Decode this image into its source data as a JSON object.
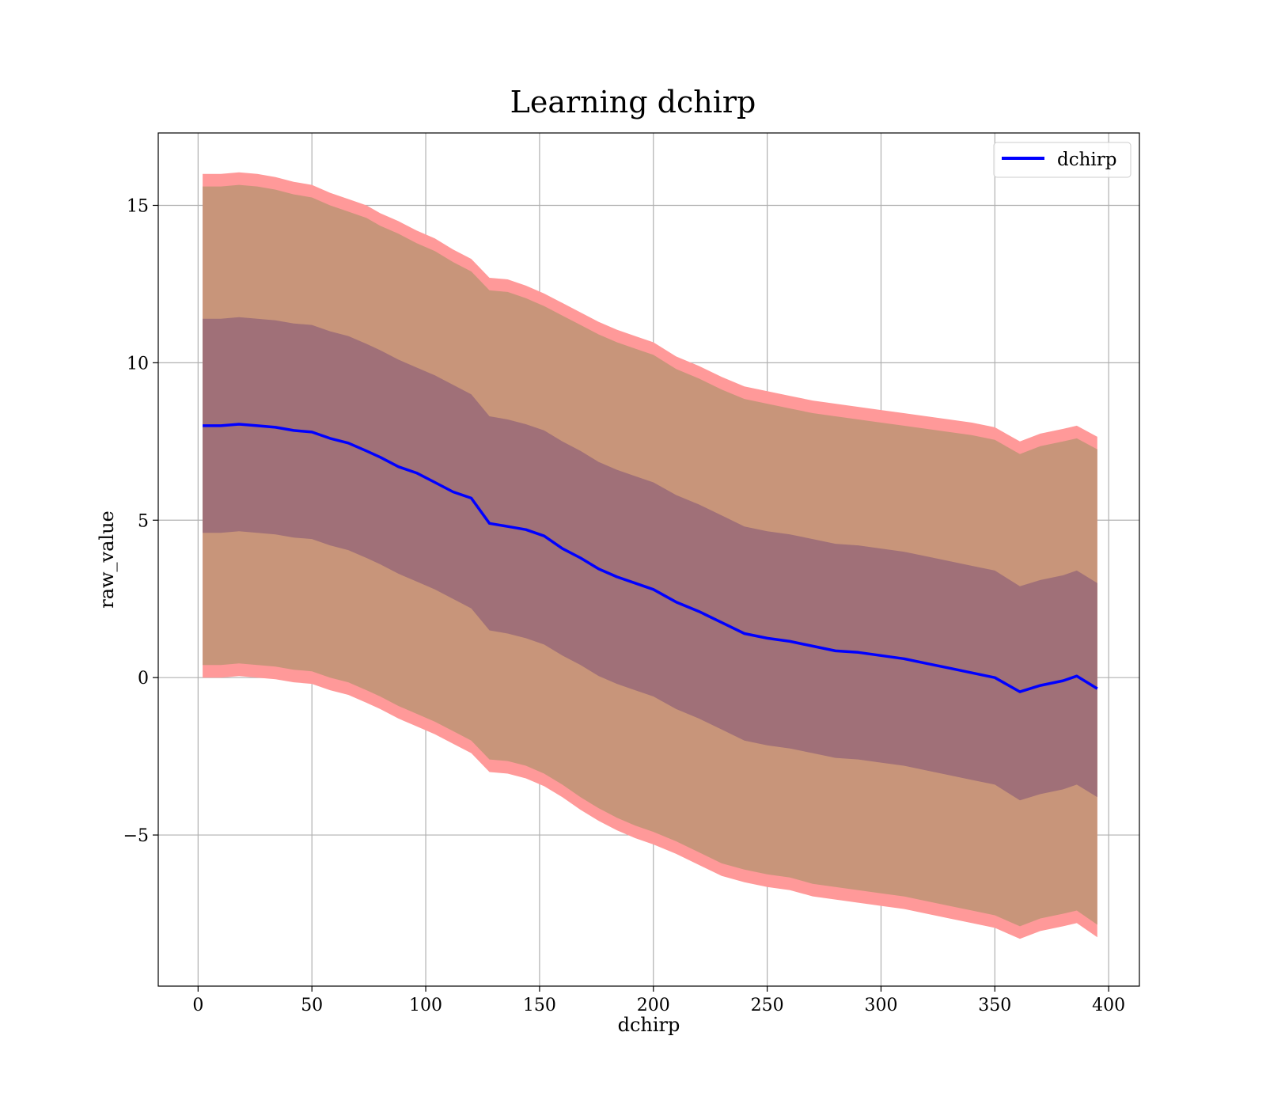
{
  "chart_data": {
    "type": "line",
    "title": "Learning dchirp",
    "xlabel": "dchirp",
    "ylabel": "raw_value",
    "xlim": [
      -17.5,
      413.5
    ],
    "ylim": [
      -9.8,
      17.3
    ],
    "xticks": [
      0,
      50,
      100,
      150,
      200,
      250,
      300,
      350,
      400
    ],
    "yticks": [
      15,
      10,
      5,
      0,
      -5
    ],
    "ytick_labels": [
      "15",
      "10",
      "5",
      "0",
      "−5"
    ],
    "grid": true,
    "legend": {
      "position": "top-right",
      "entries": [
        "dchirp"
      ]
    },
    "colors": {
      "line": "#0000ff",
      "band_outer": "#ff9999",
      "band_mid": "#c8957a",
      "band_inner": "#a07078",
      "grid": "#b0b0b0"
    },
    "series": [
      {
        "name": "dchirp",
        "x": [
          2,
          10,
          18,
          26,
          34,
          42,
          50,
          58,
          66,
          74,
          80,
          88,
          96,
          104,
          112,
          120,
          128,
          136,
          144,
          152,
          160,
          168,
          176,
          184,
          192,
          200,
          210,
          220,
          230,
          240,
          250,
          260,
          270,
          280,
          290,
          300,
          310,
          320,
          330,
          340,
          350,
          361,
          370,
          380,
          386,
          395
        ],
        "values": [
          8.0,
          8.0,
          8.05,
          8.0,
          7.95,
          7.85,
          7.8,
          7.6,
          7.45,
          7.2,
          7.0,
          6.7,
          6.5,
          6.2,
          5.9,
          5.7,
          4.9,
          4.8,
          4.7,
          4.5,
          4.1,
          3.8,
          3.45,
          3.2,
          3.0,
          2.8,
          2.4,
          2.1,
          1.75,
          1.4,
          1.25,
          1.15,
          1.0,
          0.85,
          0.8,
          0.7,
          0.6,
          0.45,
          0.3,
          0.15,
          0.0,
          -0.45,
          -0.25,
          -0.1,
          0.05,
          -0.35
        ],
        "band_outer_upper": [
          16.0,
          16.0,
          16.05,
          16.0,
          15.9,
          15.75,
          15.65,
          15.4,
          15.2,
          15.0,
          14.75,
          14.5,
          14.2,
          13.95,
          13.6,
          13.3,
          12.7,
          12.65,
          12.45,
          12.2,
          11.9,
          11.6,
          11.3,
          11.05,
          10.85,
          10.65,
          10.2,
          9.9,
          9.55,
          9.25,
          9.1,
          8.95,
          8.8,
          8.7,
          8.6,
          8.5,
          8.4,
          8.3,
          8.2,
          8.1,
          7.95,
          7.5,
          7.75,
          7.9,
          8.0,
          7.65
        ],
        "band_outer_lower": [
          0.0,
          0.0,
          0.05,
          0.0,
          -0.05,
          -0.15,
          -0.2,
          -0.4,
          -0.55,
          -0.8,
          -1.0,
          -1.3,
          -1.55,
          -1.8,
          -2.1,
          -2.4,
          -3.0,
          -3.05,
          -3.2,
          -3.45,
          -3.8,
          -4.2,
          -4.55,
          -4.85,
          -5.1,
          -5.3,
          -5.6,
          -5.95,
          -6.3,
          -6.5,
          -6.65,
          -6.75,
          -6.95,
          -7.05,
          -7.15,
          -7.25,
          -7.35,
          -7.5,
          -7.65,
          -7.8,
          -7.95,
          -8.3,
          -8.05,
          -7.9,
          -7.8,
          -8.25
        ],
        "band_mid_upper": [
          15.6,
          15.6,
          15.65,
          15.6,
          15.5,
          15.35,
          15.25,
          15.0,
          14.8,
          14.6,
          14.35,
          14.1,
          13.8,
          13.55,
          13.2,
          12.9,
          12.3,
          12.25,
          12.05,
          11.8,
          11.5,
          11.2,
          10.9,
          10.65,
          10.45,
          10.25,
          9.8,
          9.5,
          9.15,
          8.85,
          8.7,
          8.55,
          8.4,
          8.3,
          8.2,
          8.1,
          8.0,
          7.9,
          7.8,
          7.7,
          7.55,
          7.1,
          7.35,
          7.5,
          7.6,
          7.25
        ],
        "band_mid_lower": [
          0.4,
          0.4,
          0.45,
          0.4,
          0.35,
          0.25,
          0.2,
          0.0,
          -0.15,
          -0.4,
          -0.6,
          -0.9,
          -1.15,
          -1.4,
          -1.7,
          -2.0,
          -2.6,
          -2.65,
          -2.8,
          -3.05,
          -3.4,
          -3.8,
          -4.15,
          -4.45,
          -4.7,
          -4.9,
          -5.2,
          -5.55,
          -5.9,
          -6.1,
          -6.25,
          -6.35,
          -6.55,
          -6.65,
          -6.75,
          -6.85,
          -6.95,
          -7.1,
          -7.25,
          -7.4,
          -7.55,
          -7.9,
          -7.65,
          -7.5,
          -7.4,
          -7.85
        ],
        "band_inner_upper": [
          11.4,
          11.4,
          11.45,
          11.4,
          11.35,
          11.25,
          11.2,
          11.0,
          10.85,
          10.6,
          10.4,
          10.1,
          9.85,
          9.6,
          9.3,
          9.0,
          8.3,
          8.2,
          8.05,
          7.85,
          7.5,
          7.2,
          6.85,
          6.6,
          6.4,
          6.2,
          5.8,
          5.5,
          5.15,
          4.8,
          4.65,
          4.55,
          4.4,
          4.25,
          4.2,
          4.1,
          4.0,
          3.85,
          3.7,
          3.55,
          3.4,
          2.9,
          3.1,
          3.25,
          3.4,
          3.0
        ],
        "band_inner_lower": [
          4.6,
          4.6,
          4.65,
          4.6,
          4.55,
          4.45,
          4.4,
          4.2,
          4.05,
          3.8,
          3.6,
          3.3,
          3.05,
          2.8,
          2.5,
          2.2,
          1.5,
          1.4,
          1.25,
          1.05,
          0.7,
          0.4,
          0.05,
          -0.2,
          -0.4,
          -0.6,
          -1.0,
          -1.3,
          -1.65,
          -2.0,
          -2.15,
          -2.25,
          -2.4,
          -2.55,
          -2.6,
          -2.7,
          -2.8,
          -2.95,
          -3.1,
          -3.25,
          -3.4,
          -3.9,
          -3.7,
          -3.55,
          -3.4,
          -3.8
        ]
      }
    ]
  }
}
